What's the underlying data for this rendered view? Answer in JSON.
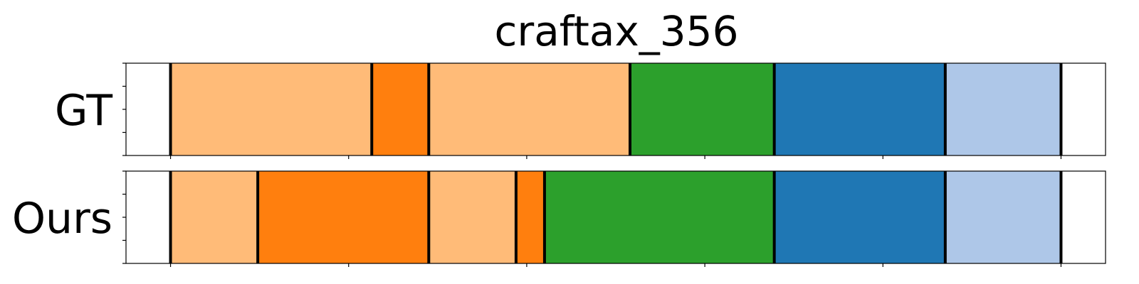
{
  "chart_data": {
    "type": "bar",
    "title": "craftax_356",
    "xlim": [
      0,
      55
    ],
    "x_ticks": [
      2.5,
      12.5,
      22.5,
      32.5,
      42.5,
      52.5
    ],
    "y_ticks": [
      0,
      0.25,
      0.5,
      0.75,
      1.0
    ],
    "grid": false,
    "colors": {
      "light_orange": "#ffbb78",
      "orange": "#ff7f0e",
      "green": "#2ca02c",
      "blue": "#1f77b4",
      "light_blue": "#aec7e8",
      "boundary": "#000000"
    },
    "rows": [
      {
        "label": "GT",
        "segments": [
          {
            "start": 2.5,
            "end": 13.8,
            "color": "light_orange"
          },
          {
            "start": 13.8,
            "end": 17.0,
            "color": "orange"
          },
          {
            "start": 17.0,
            "end": 28.3,
            "color": "light_orange"
          },
          {
            "start": 28.3,
            "end": 36.4,
            "color": "green"
          },
          {
            "start": 36.4,
            "end": 46.0,
            "color": "blue"
          },
          {
            "start": 46.0,
            "end": 52.5,
            "color": "light_blue"
          }
        ]
      },
      {
        "label": "Ours",
        "segments": [
          {
            "start": 2.5,
            "end": 7.4,
            "color": "light_orange"
          },
          {
            "start": 7.4,
            "end": 17.0,
            "color": "orange"
          },
          {
            "start": 17.0,
            "end": 21.9,
            "color": "light_orange"
          },
          {
            "start": 21.9,
            "end": 23.5,
            "color": "orange"
          },
          {
            "start": 23.5,
            "end": 36.4,
            "color": "green"
          },
          {
            "start": 36.4,
            "end": 46.0,
            "color": "blue"
          },
          {
            "start": 46.0,
            "end": 52.5,
            "color": "light_blue"
          }
        ]
      }
    ]
  }
}
